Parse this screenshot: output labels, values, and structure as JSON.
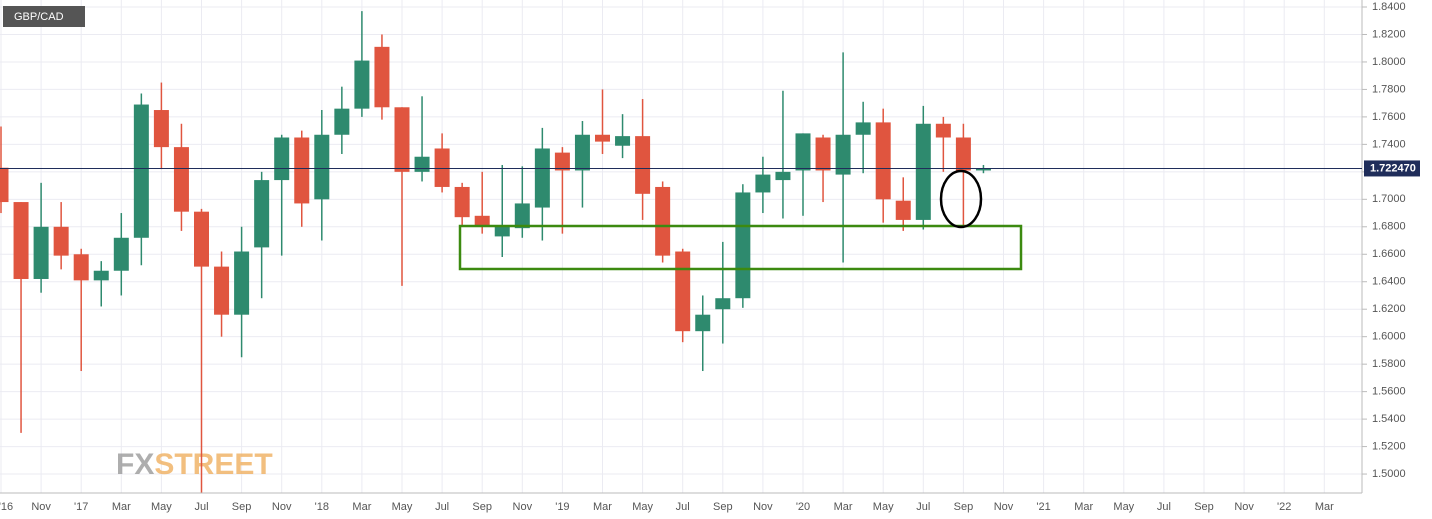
{
  "chart_data": {
    "type": "candlestick",
    "title": "GBP/CAD",
    "watermark": [
      "FX",
      "STREET"
    ],
    "x": [
      "2016-09",
      "2016-10",
      "2016-11",
      "2016-12",
      "2017-01",
      "2017-02",
      "2017-03",
      "2017-04",
      "2017-05",
      "2017-06",
      "2017-07",
      "2017-08",
      "2017-09",
      "2017-10",
      "2017-11",
      "2017-12",
      "2018-01",
      "2018-02",
      "2018-03",
      "2018-04",
      "2018-05",
      "2018-06",
      "2018-07",
      "2018-08",
      "2018-09",
      "2018-10",
      "2018-11",
      "2018-12",
      "2019-01",
      "2019-02",
      "2019-03",
      "2019-04",
      "2019-05",
      "2019-06",
      "2019-07",
      "2019-08",
      "2019-09",
      "2019-10",
      "2019-11",
      "2019-12",
      "2020-01",
      "2020-02",
      "2020-03",
      "2020-04",
      "2020-05",
      "2020-06",
      "2020-07",
      "2020-08",
      "2020-09",
      "2020-10"
    ],
    "open": [
      1.723,
      1.698,
      1.642,
      1.68,
      1.66,
      1.641,
      1.648,
      1.672,
      1.765,
      1.738,
      1.691,
      1.651,
      1.616,
      1.665,
      1.714,
      1.745,
      1.7,
      1.747,
      1.766,
      1.811,
      1.767,
      1.72,
      1.737,
      1.709,
      1.688,
      1.673,
      1.679,
      1.694,
      1.734,
      1.721,
      1.747,
      1.739,
      1.746,
      1.709,
      1.662,
      1.604,
      1.62,
      1.628,
      1.705,
      1.714,
      1.721,
      1.745,
      1.718,
      1.747,
      1.756,
      1.699,
      1.685,
      1.755,
      1.745,
      1.721
    ],
    "high": [
      1.753,
      1.698,
      1.712,
      1.698,
      1.664,
      1.655,
      1.69,
      1.777,
      1.785,
      1.755,
      1.693,
      1.662,
      1.68,
      1.72,
      1.747,
      1.75,
      1.765,
      1.782,
      1.837,
      1.82,
      1.767,
      1.775,
      1.748,
      1.712,
      1.72,
      1.725,
      1.724,
      1.752,
      1.738,
      1.757,
      1.78,
      1.762,
      1.773,
      1.713,
      1.664,
      1.63,
      1.669,
      1.711,
      1.731,
      1.779,
      1.748,
      1.747,
      1.807,
      1.771,
      1.766,
      1.716,
      1.768,
      1.76,
      1.755,
      1.725
    ],
    "low": [
      1.69,
      1.53,
      1.632,
      1.649,
      1.575,
      1.622,
      1.63,
      1.652,
      1.722,
      1.677,
      1.48,
      1.6,
      1.585,
      1.628,
      1.659,
      1.68,
      1.67,
      1.733,
      1.76,
      1.758,
      1.637,
      1.713,
      1.705,
      1.68,
      1.675,
      1.658,
      1.672,
      1.67,
      1.675,
      1.694,
      1.733,
      1.73,
      1.685,
      1.654,
      1.596,
      1.575,
      1.595,
      1.621,
      1.69,
      1.686,
      1.688,
      1.698,
      1.654,
      1.719,
      1.683,
      1.677,
      1.678,
      1.72,
      1.681,
      1.719
    ],
    "close": [
      1.698,
      1.642,
      1.68,
      1.659,
      1.641,
      1.648,
      1.672,
      1.769,
      1.738,
      1.691,
      1.651,
      1.616,
      1.662,
      1.714,
      1.745,
      1.697,
      1.747,
      1.766,
      1.801,
      1.767,
      1.72,
      1.731,
      1.709,
      1.687,
      1.681,
      1.68,
      1.697,
      1.737,
      1.721,
      1.747,
      1.742,
      1.746,
      1.704,
      1.659,
      1.604,
      1.616,
      1.628,
      1.705,
      1.718,
      1.72,
      1.748,
      1.721,
      1.747,
      1.756,
      1.7,
      1.685,
      1.755,
      1.745,
      1.721,
      1.7225
    ],
    "up_color": "#2e8a6e",
    "down_color": "#e0553f",
    "last_price": {
      "value": 1.72247,
      "label": "1.722470"
    },
    "ylim": [
      1.4862,
      1.8451
    ],
    "yticks": [
      {
        "value": 1.5,
        "label": "1.5000"
      },
      {
        "value": 1.52,
        "label": "1.5200"
      },
      {
        "value": 1.54,
        "label": "1.5400"
      },
      {
        "value": 1.56,
        "label": "1.5600"
      },
      {
        "value": 1.58,
        "label": "1.5800"
      },
      {
        "value": 1.6,
        "label": "1.6000"
      },
      {
        "value": 1.62,
        "label": "1.6200"
      },
      {
        "value": 1.64,
        "label": "1.6400"
      },
      {
        "value": 1.66,
        "label": "1.6600"
      },
      {
        "value": 1.68,
        "label": "1.6800"
      },
      {
        "value": 1.7,
        "label": "1.7000"
      },
      {
        "value": 1.72,
        "label": "1.7200"
      },
      {
        "value": 1.74,
        "label": "1.7400"
      },
      {
        "value": 1.76,
        "label": "1.7600"
      },
      {
        "value": 1.78,
        "label": "1.7800"
      },
      {
        "value": 1.8,
        "label": "1.8000"
      },
      {
        "value": 1.82,
        "label": "1.8200"
      },
      {
        "value": 1.84,
        "label": "1.8400"
      }
    ],
    "xticks": [
      {
        "value": "2016-09",
        "label": "'16"
      },
      {
        "value": "2016-11",
        "label": "Nov"
      },
      {
        "value": "2017-01",
        "label": "'17"
      },
      {
        "value": "2017-03",
        "label": "Mar"
      },
      {
        "value": "2017-05",
        "label": "May"
      },
      {
        "value": "2017-07",
        "label": "Jul"
      },
      {
        "value": "2017-09",
        "label": "Sep"
      },
      {
        "value": "2017-11",
        "label": "Nov"
      },
      {
        "value": "2018-01",
        "label": "'18"
      },
      {
        "value": "2018-03",
        "label": "Mar"
      },
      {
        "value": "2018-05",
        "label": "May"
      },
      {
        "value": "2018-07",
        "label": "Jul"
      },
      {
        "value": "2018-09",
        "label": "Sep"
      },
      {
        "value": "2018-11",
        "label": "Nov"
      },
      {
        "value": "2019-01",
        "label": "'19"
      },
      {
        "value": "2019-03",
        "label": "Mar"
      },
      {
        "value": "2019-05",
        "label": "May"
      },
      {
        "value": "2019-07",
        "label": "Jul"
      },
      {
        "value": "2019-09",
        "label": "Sep"
      },
      {
        "value": "2019-11",
        "label": "Nov"
      },
      {
        "value": "2020-01",
        "label": "'20"
      },
      {
        "value": "2020-03",
        "label": "Mar"
      },
      {
        "value": "2020-05",
        "label": "May"
      },
      {
        "value": "2020-07",
        "label": "Jul"
      },
      {
        "value": "2020-09",
        "label": "Sep"
      },
      {
        "value": "2020-11",
        "label": "Nov"
      },
      {
        "value": "2021-01",
        "label": "'21"
      },
      {
        "value": "2021-03",
        "label": "Mar"
      },
      {
        "value": "2021-05",
        "label": "May"
      },
      {
        "value": "2021-07",
        "label": "Jul"
      },
      {
        "value": "2021-09",
        "label": "Sep"
      },
      {
        "value": "2021-11",
        "label": "Nov"
      },
      {
        "value": "2022-01",
        "label": "'22"
      },
      {
        "value": "2022-03",
        "label": "Mar"
      }
    ],
    "grid": true
  }
}
